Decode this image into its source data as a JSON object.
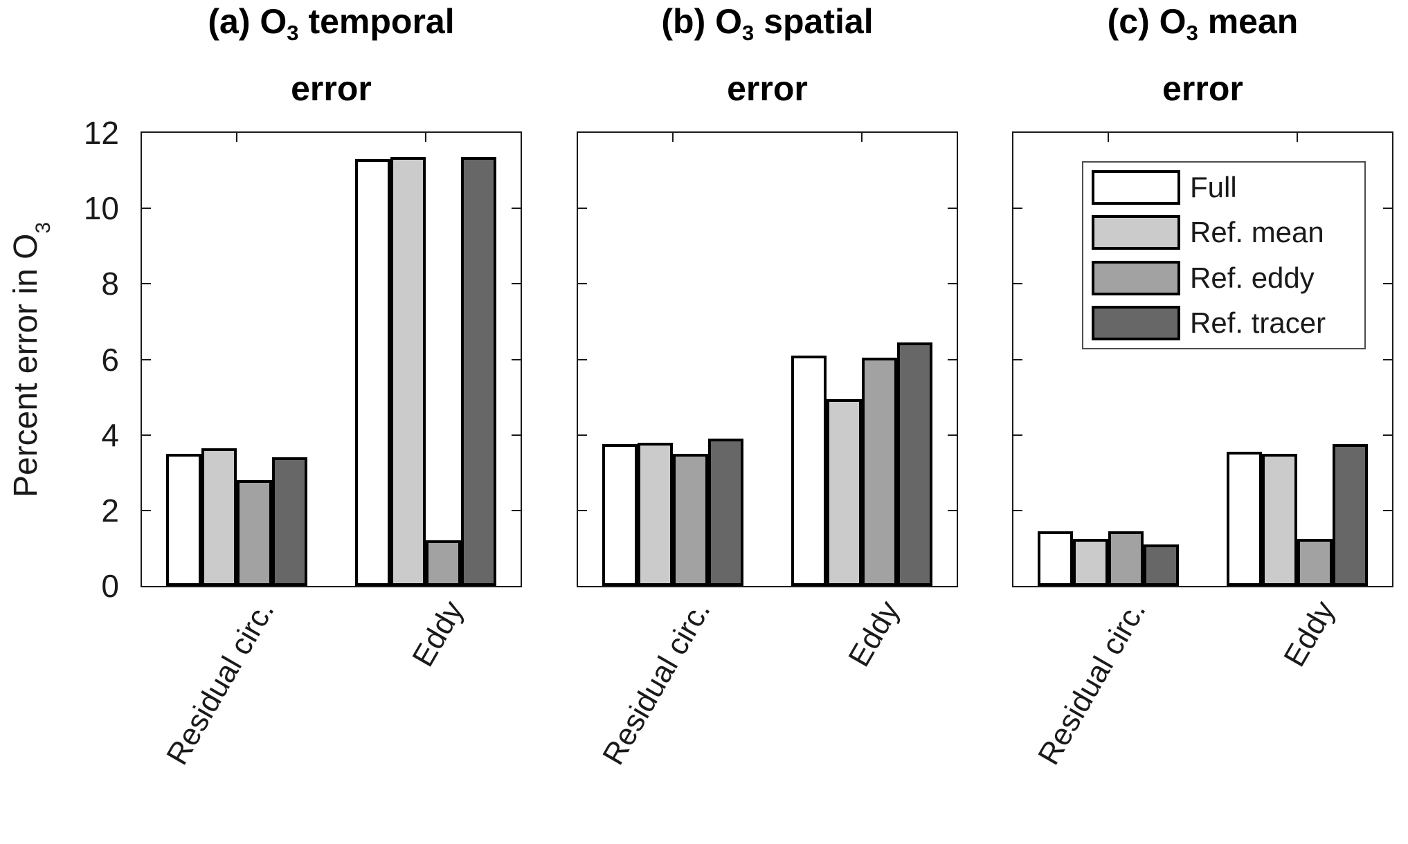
{
  "figure": {
    "ylabel": {
      "text": "Percent error in O",
      "sub": "3"
    },
    "y_ticks": [
      0,
      2,
      4,
      6,
      8,
      10,
      12
    ],
    "background": "#ffffff",
    "axis_color": "#1a1a1a",
    "bar_edge_color": "#000000"
  },
  "legend": {
    "position": "top-right of panel (c)",
    "items": [
      {
        "label": "Full",
        "color": "#ffffff"
      },
      {
        "label": "Ref. mean",
        "color": "#cbcbcb"
      },
      {
        "label": "Ref. eddy",
        "color": "#a2a2a2"
      },
      {
        "label": "Ref. tracer",
        "color": "#676767"
      }
    ]
  },
  "chart_data": [
    {
      "type": "bar",
      "title": "(a) O3 temporal error",
      "title_parts": {
        "prefix": "(a) O",
        "sub": "3",
        "suffix": " temporal",
        "line2": "error"
      },
      "xlabel": "",
      "ylabel": "Percent error in O3",
      "ylim": [
        0,
        12
      ],
      "grid": false,
      "categories": [
        "Residual circ.",
        "Eddy"
      ],
      "series": [
        {
          "name": "Full",
          "values": [
            3.5,
            11.3
          ]
        },
        {
          "name": "Ref. mean",
          "values": [
            3.65,
            11.35
          ]
        },
        {
          "name": "Ref. eddy",
          "values": [
            2.8,
            1.2
          ]
        },
        {
          "name": "Ref. tracer",
          "values": [
            3.4,
            11.35
          ]
        }
      ]
    },
    {
      "type": "bar",
      "title": "(b) O3 spatial error",
      "title_parts": {
        "prefix": "(b) O",
        "sub": "3",
        "suffix": " spatial",
        "line2": "error"
      },
      "xlabel": "",
      "ylabel": "Percent error in O3",
      "ylim": [
        0,
        12
      ],
      "grid": false,
      "categories": [
        "Residual circ.",
        "Eddy"
      ],
      "series": [
        {
          "name": "Full",
          "values": [
            3.75,
            6.1
          ]
        },
        {
          "name": "Ref. mean",
          "values": [
            3.8,
            4.95
          ]
        },
        {
          "name": "Ref. eddy",
          "values": [
            3.5,
            6.05
          ]
        },
        {
          "name": "Ref. tracer",
          "values": [
            3.9,
            6.45
          ]
        }
      ]
    },
    {
      "type": "bar",
      "title": "(c) O3 mean error",
      "title_parts": {
        "prefix": "(c) O",
        "sub": "3",
        "suffix": " mean",
        "line2": "error"
      },
      "xlabel": "",
      "ylabel": "Percent error in O3",
      "ylim": [
        0,
        12
      ],
      "grid": false,
      "categories": [
        "Residual circ.",
        "Eddy"
      ],
      "series": [
        {
          "name": "Full",
          "values": [
            1.45,
            3.55
          ]
        },
        {
          "name": "Ref. mean",
          "values": [
            1.25,
            3.5
          ]
        },
        {
          "name": "Ref. eddy",
          "values": [
            1.45,
            1.25
          ]
        },
        {
          "name": "Ref. tracer",
          "values": [
            1.1,
            3.75
          ]
        }
      ]
    }
  ]
}
